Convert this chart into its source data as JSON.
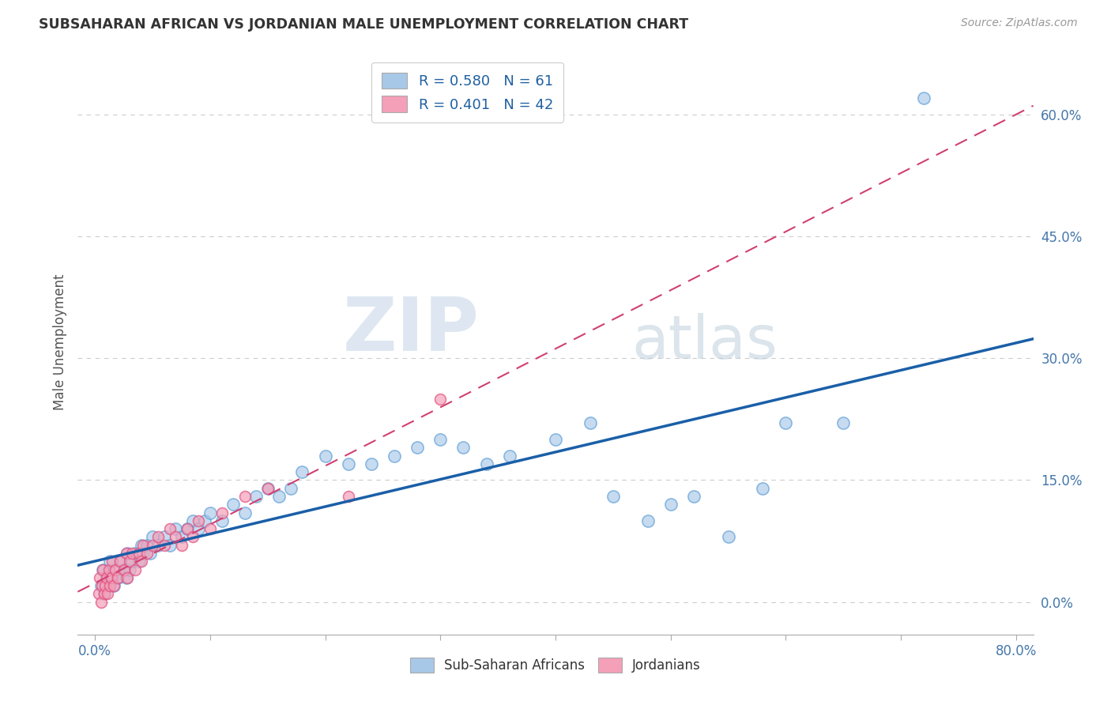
{
  "title": "SUBSAHARAN AFRICAN VS JORDANIAN MALE UNEMPLOYMENT CORRELATION CHART",
  "source": "Source: ZipAtlas.com",
  "ylabel": "Male Unemployment",
  "xlim": [
    -0.015,
    0.815
  ],
  "ylim": [
    -0.04,
    0.68
  ],
  "xticks": [
    0.0,
    0.1,
    0.2,
    0.3,
    0.4,
    0.5,
    0.6,
    0.7,
    0.8
  ],
  "xtick_labels_shown": [
    "0.0%",
    "",
    "",
    "",
    "",
    "",
    "",
    "",
    "80.0%"
  ],
  "ytick_vals": [
    0.0,
    0.15,
    0.3,
    0.45,
    0.6
  ],
  "ytick_labels": [
    "0.0%",
    "15.0%",
    "30.0%",
    "45.0%",
    "60.0%"
  ],
  "legend_labels": [
    "Sub-Saharan Africans",
    "Jordanians"
  ],
  "blue_color": "#a8c8e8",
  "pink_color": "#f4a0b8",
  "blue_edge_color": "#5b9bd5",
  "pink_edge_color": "#e05080",
  "blue_line_color": "#1a5fa8",
  "pink_line_color": "#d04070",
  "watermark_zip": "ZIP",
  "watermark_atlas": "atlas",
  "r_blue": 0.58,
  "n_blue": 61,
  "r_pink": 0.401,
  "n_pink": 42,
  "blue_scatter": [
    [
      0.005,
      0.02
    ],
    [
      0.007,
      0.04
    ],
    [
      0.008,
      0.01
    ],
    [
      0.01,
      0.03
    ],
    [
      0.012,
      0.02
    ],
    [
      0.013,
      0.05
    ],
    [
      0.015,
      0.03
    ],
    [
      0.016,
      0.02
    ],
    [
      0.018,
      0.04
    ],
    [
      0.02,
      0.03
    ],
    [
      0.022,
      0.05
    ],
    [
      0.025,
      0.04
    ],
    [
      0.027,
      0.03
    ],
    [
      0.028,
      0.06
    ],
    [
      0.03,
      0.04
    ],
    [
      0.032,
      0.05
    ],
    [
      0.035,
      0.06
    ],
    [
      0.038,
      0.05
    ],
    [
      0.04,
      0.07
    ],
    [
      0.042,
      0.06
    ],
    [
      0.045,
      0.07
    ],
    [
      0.048,
      0.06
    ],
    [
      0.05,
      0.08
    ],
    [
      0.055,
      0.07
    ],
    [
      0.06,
      0.08
    ],
    [
      0.065,
      0.07
    ],
    [
      0.07,
      0.09
    ],
    [
      0.075,
      0.08
    ],
    [
      0.08,
      0.09
    ],
    [
      0.085,
      0.1
    ],
    [
      0.09,
      0.09
    ],
    [
      0.095,
      0.1
    ],
    [
      0.1,
      0.11
    ],
    [
      0.11,
      0.1
    ],
    [
      0.12,
      0.12
    ],
    [
      0.13,
      0.11
    ],
    [
      0.14,
      0.13
    ],
    [
      0.15,
      0.14
    ],
    [
      0.16,
      0.13
    ],
    [
      0.17,
      0.14
    ],
    [
      0.18,
      0.16
    ],
    [
      0.2,
      0.18
    ],
    [
      0.22,
      0.17
    ],
    [
      0.24,
      0.17
    ],
    [
      0.26,
      0.18
    ],
    [
      0.28,
      0.19
    ],
    [
      0.3,
      0.2
    ],
    [
      0.32,
      0.19
    ],
    [
      0.34,
      0.17
    ],
    [
      0.36,
      0.18
    ],
    [
      0.4,
      0.2
    ],
    [
      0.43,
      0.22
    ],
    [
      0.45,
      0.13
    ],
    [
      0.48,
      0.1
    ],
    [
      0.5,
      0.12
    ],
    [
      0.52,
      0.13
    ],
    [
      0.55,
      0.08
    ],
    [
      0.58,
      0.14
    ],
    [
      0.6,
      0.22
    ],
    [
      0.65,
      0.22
    ],
    [
      0.72,
      0.62
    ]
  ],
  "pink_scatter": [
    [
      0.003,
      0.01
    ],
    [
      0.004,
      0.03
    ],
    [
      0.005,
      0.0
    ],
    [
      0.006,
      0.02
    ],
    [
      0.007,
      0.04
    ],
    [
      0.008,
      0.01
    ],
    [
      0.009,
      0.02
    ],
    [
      0.01,
      0.03
    ],
    [
      0.011,
      0.01
    ],
    [
      0.012,
      0.04
    ],
    [
      0.013,
      0.02
    ],
    [
      0.014,
      0.03
    ],
    [
      0.015,
      0.05
    ],
    [
      0.016,
      0.02
    ],
    [
      0.018,
      0.04
    ],
    [
      0.02,
      0.03
    ],
    [
      0.022,
      0.05
    ],
    [
      0.025,
      0.04
    ],
    [
      0.027,
      0.06
    ],
    [
      0.028,
      0.03
    ],
    [
      0.03,
      0.05
    ],
    [
      0.032,
      0.06
    ],
    [
      0.035,
      0.04
    ],
    [
      0.038,
      0.06
    ],
    [
      0.04,
      0.05
    ],
    [
      0.042,
      0.07
    ],
    [
      0.045,
      0.06
    ],
    [
      0.05,
      0.07
    ],
    [
      0.055,
      0.08
    ],
    [
      0.06,
      0.07
    ],
    [
      0.065,
      0.09
    ],
    [
      0.07,
      0.08
    ],
    [
      0.075,
      0.07
    ],
    [
      0.08,
      0.09
    ],
    [
      0.085,
      0.08
    ],
    [
      0.09,
      0.1
    ],
    [
      0.1,
      0.09
    ],
    [
      0.11,
      0.11
    ],
    [
      0.13,
      0.13
    ],
    [
      0.15,
      0.14
    ],
    [
      0.22,
      0.13
    ],
    [
      0.3,
      0.25
    ]
  ]
}
